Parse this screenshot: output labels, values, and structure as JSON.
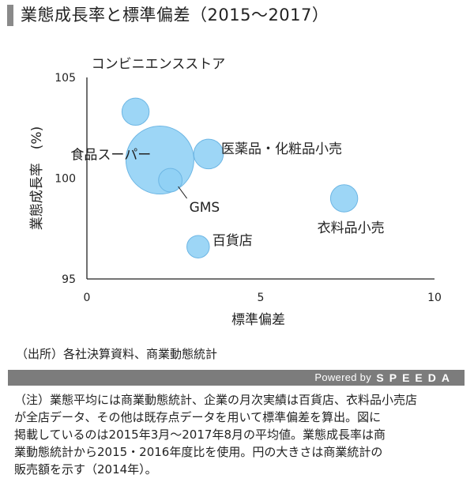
{
  "title": "業態成長率と標準偏差（2015～2017）",
  "source": "（出所）各社決算資料、商業動態統計",
  "powered": {
    "text": "Powered by",
    "logo": "SPEEDA"
  },
  "note": {
    "lines": [
      "（注）業態平均には商業動態統計、企業の月次実績は百貨店、衣料品小売店",
      "が全店データ、その他は既存点データを用いて標準偏差を算出。図に",
      "掲載しているのは2015年3月～2017年8月の平均値。業態成長率は商",
      "業動態統計から2015・2016年度比を使用。円の大きさは商業統計の",
      "販売額を示す（2014年）。"
    ]
  },
  "colors": {
    "bubble_fill": "#8fd0f5",
    "bubble_stroke": "#6db6e4",
    "axis": "#222222"
  },
  "chart_data": {
    "type": "scatter",
    "title": "",
    "xlabel": "標準偏差",
    "ylabel": "業態成長率　(%)",
    "xlim": [
      0,
      10
    ],
    "ylim": [
      95,
      105
    ],
    "xticks": [
      0,
      5,
      10
    ],
    "yticks": [
      95,
      100,
      105
    ],
    "grid": false,
    "bubble_size_meaning": "販売額（2014年）",
    "points": [
      {
        "label": "コンビニエンスストア",
        "x": 1.4,
        "y": 103.3,
        "size": 0.16
      },
      {
        "label": "食品スーパー",
        "x": 2.1,
        "y": 100.9,
        "size": 1.0
      },
      {
        "label": "医薬品・化粧品小売",
        "x": 3.5,
        "y": 101.2,
        "size": 0.19
      },
      {
        "label": "GMS",
        "x": 2.4,
        "y": 99.9,
        "size": 0.12
      },
      {
        "label": "衣料品小売",
        "x": 7.4,
        "y": 99.0,
        "size": 0.16
      },
      {
        "label": "百貨店",
        "x": 3.2,
        "y": 96.6,
        "size": 0.11
      }
    ]
  }
}
